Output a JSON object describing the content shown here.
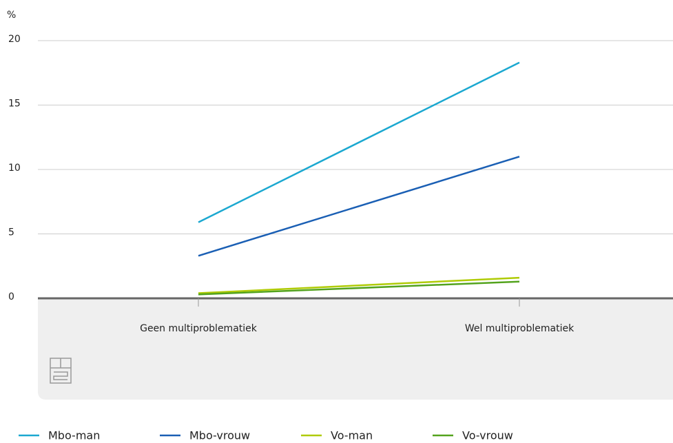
{
  "chart_data": {
    "type": "line",
    "y_label": "%",
    "categories": [
      "Geen multiproblematiek",
      "Wel multiproblematiek"
    ],
    "series": [
      {
        "name": "Mbo-man",
        "color": "#1ba8d0",
        "values": [
          5.9,
          18.3
        ]
      },
      {
        "name": "Mbo-vrouw",
        "color": "#1a5fb4",
        "values": [
          3.3,
          11.0
        ]
      },
      {
        "name": "Vo-man",
        "color": "#afcb05",
        "values": [
          0.4,
          1.6
        ]
      },
      {
        "name": "Vo-vrouw",
        "color": "#53a31d",
        "values": [
          0.3,
          1.3
        ]
      }
    ],
    "ylim": [
      0,
      20
    ],
    "yticks": [
      0,
      5,
      10,
      15,
      20
    ],
    "grid": true,
    "legend": "bottom"
  }
}
